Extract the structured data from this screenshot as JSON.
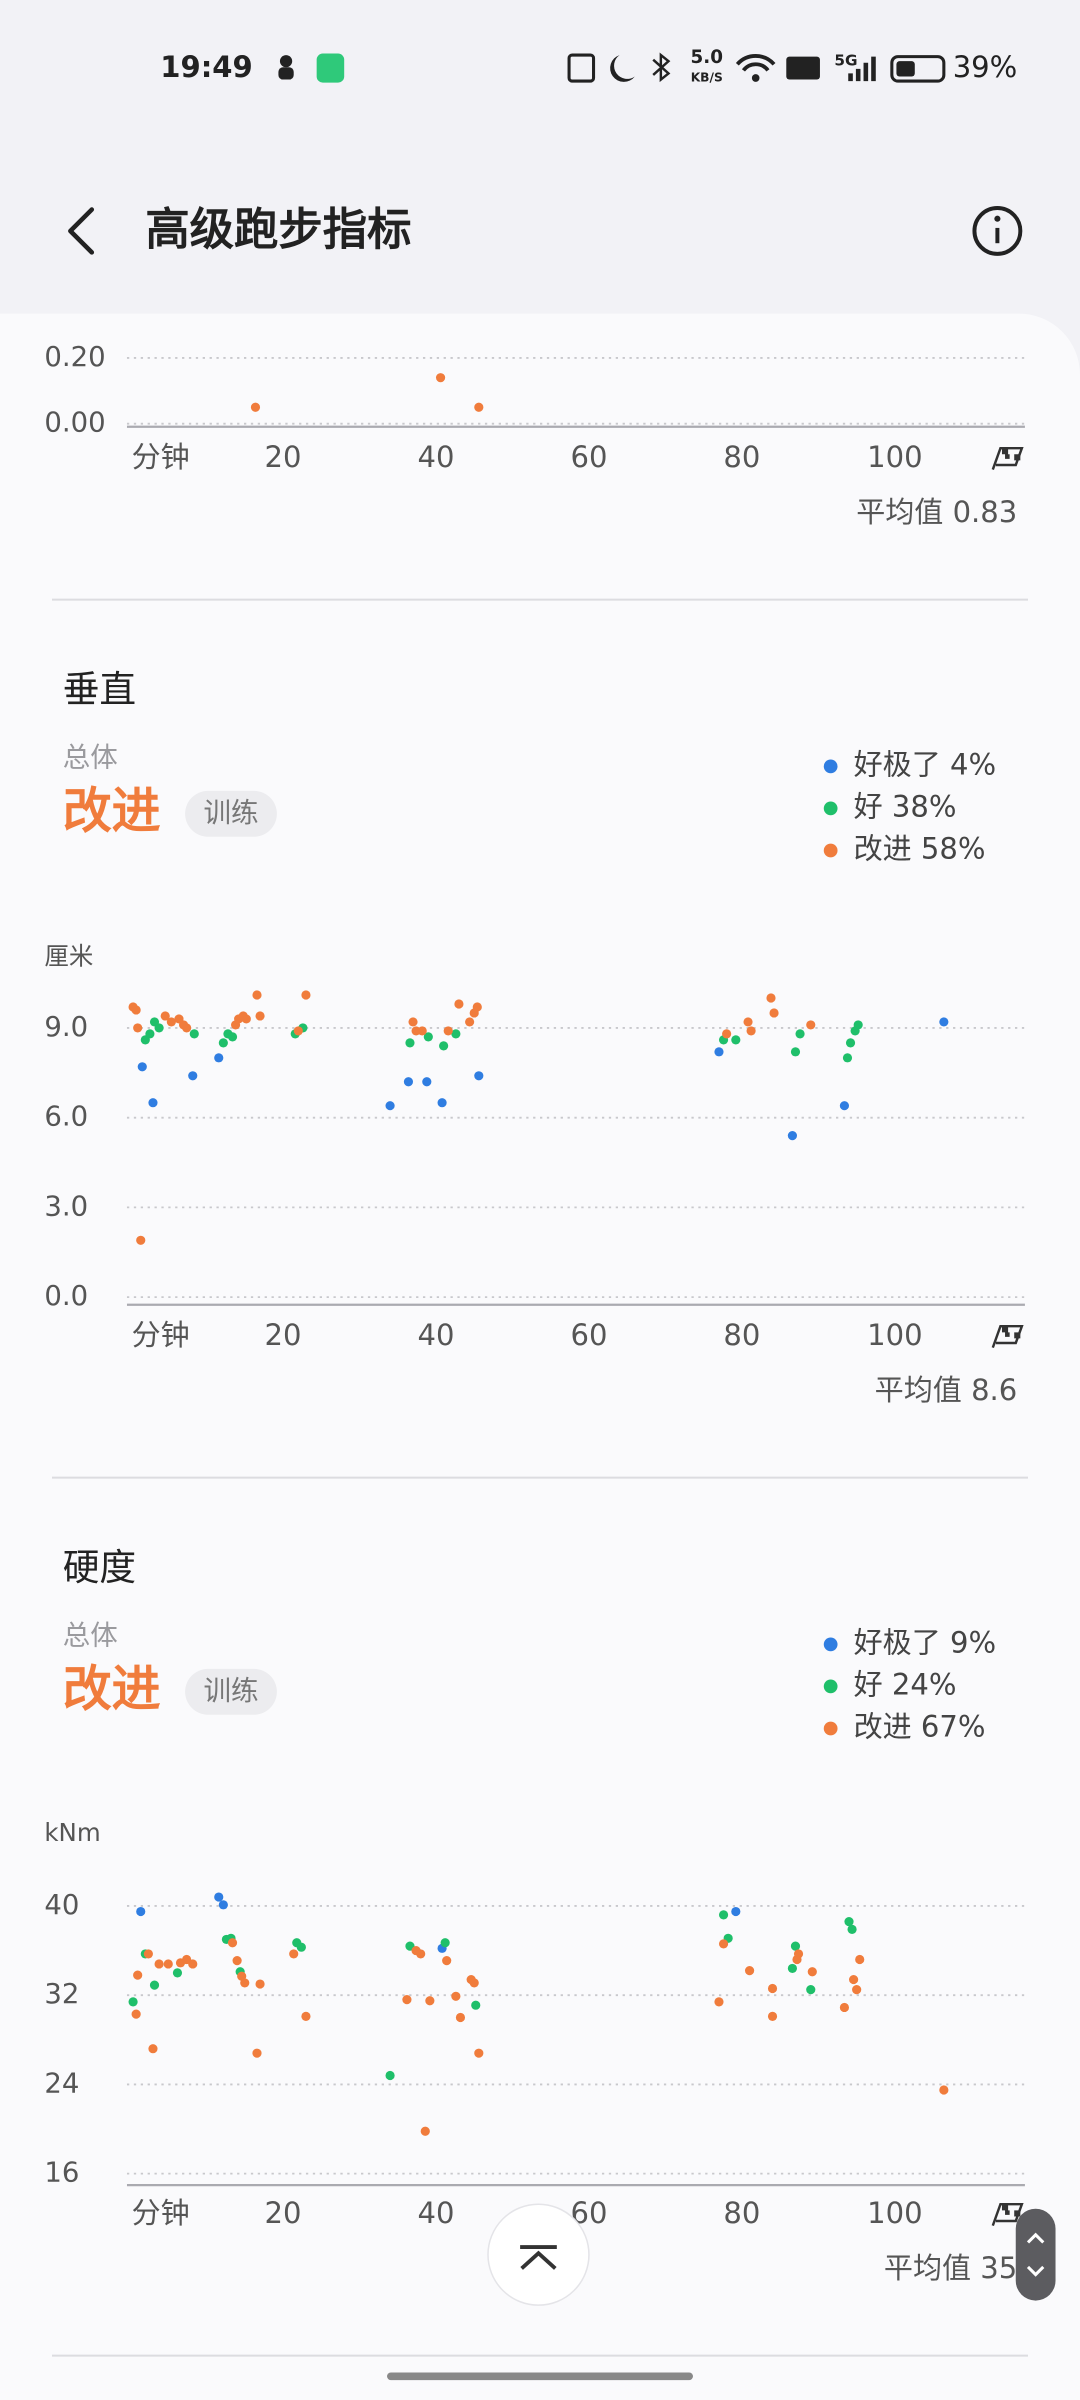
{
  "status_bar": {
    "time": "19:49",
    "network_speed": "5.0",
    "network_unit": "KB/S",
    "signal": "5G",
    "battery": "39%"
  },
  "header": {
    "title": "高级跑步指标"
  },
  "chart_data": [
    {
      "type": "scatter",
      "xlabel": "分钟",
      "color": "#f07c3c",
      "x": [
        16.4,
        40.6,
        45.6
      ],
      "values": [
        0.05,
        0.14,
        0.05
      ],
      "xlim": [
        0,
        117
      ],
      "xticks": [
        20,
        40,
        60,
        80,
        100
      ],
      "ylim": [
        0,
        0.2
      ],
      "yticks": [
        {
          "value": 0,
          "label": "0.00"
        },
        {
          "value": 0.2,
          "label": "0.20"
        }
      ],
      "grid": true,
      "average": "平均值 0.83"
    },
    {
      "type": "scatter",
      "title": "垂直",
      "overall_label": "总体",
      "rating": "改进",
      "rating_tag": "训练",
      "ylabel": "厘米",
      "xlabel": "分钟",
      "legend": "top-right",
      "series": [
        {
          "name": "好极了 4%",
          "color": "#2f7de1",
          "x": [
            1.6,
            3.0,
            8.2,
            11.6,
            34.0,
            36.4,
            38.8,
            40.8,
            45.6,
            77.0,
            86.6,
            93.4,
            106.4
          ],
          "values": [
            7.7,
            6.5,
            7.4,
            8.0,
            6.4,
            7.2,
            7.2,
            6.5,
            7.4,
            8.2,
            5.4,
            6.4,
            9.2
          ]
        },
        {
          "name": "好 38%",
          "color": "#1fbf6a",
          "x": [
            2.0,
            2.6,
            3.2,
            3.8,
            8.4,
            12.2,
            12.8,
            13.4,
            21.6,
            22.6,
            36.6,
            39.0,
            41.0,
            42.6,
            77.6,
            79.2,
            87.0,
            87.6,
            93.8,
            94.2,
            94.8,
            95.2
          ],
          "values": [
            8.6,
            8.8,
            9.2,
            9.0,
            8.8,
            8.5,
            8.8,
            8.7,
            8.8,
            9.0,
            8.5,
            8.7,
            8.4,
            8.8,
            8.6,
            8.6,
            8.2,
            8.8,
            8.0,
            8.5,
            8.9,
            9.1
          ]
        },
        {
          "name": "改进 58%",
          "color": "#f07c3c",
          "x": [
            0.4,
            0.8,
            1.0,
            1.4,
            4.6,
            5.4,
            6.4,
            7.0,
            7.4,
            13.8,
            14.2,
            14.8,
            15.2,
            16.6,
            17.0,
            22.0,
            23.0,
            37.0,
            37.4,
            38.2,
            41.6,
            43.0,
            44.4,
            45.0,
            45.4,
            78.0,
            80.8,
            81.2,
            83.8,
            84.2,
            89.0
          ],
          "values": [
            9.7,
            9.6,
            9.0,
            1.9,
            9.4,
            9.2,
            9.3,
            9.1,
            9.0,
            9.1,
            9.3,
            9.4,
            9.3,
            10.1,
            9.4,
            8.9,
            10.1,
            9.2,
            8.9,
            8.9,
            8.9,
            9.8,
            9.2,
            9.5,
            9.7,
            8.8,
            9.2,
            8.9,
            10.0,
            9.5,
            9.1
          ]
        }
      ],
      "xlim": [
        0,
        117
      ],
      "xticks": [
        20,
        40,
        60,
        80,
        100
      ],
      "ylim": [
        0,
        10.8
      ],
      "yticks": [
        {
          "value": 0,
          "label": "0.0"
        },
        {
          "value": 3,
          "label": "3.0"
        },
        {
          "value": 6,
          "label": "6.0"
        },
        {
          "value": 9,
          "label": "9.0"
        }
      ],
      "grid": true,
      "average": "平均值 8.6"
    },
    {
      "type": "scatter",
      "title": "硬度",
      "overall_label": "总体",
      "rating": "改进",
      "rating_tag": "训练",
      "ylabel": "kNm",
      "xlabel": "分钟",
      "legend": "top-right",
      "series": [
        {
          "name": "好极了 9%",
          "color": "#2f7de1",
          "x": [
            1.4,
            11.6,
            12.2,
            40.8,
            79.2
          ],
          "values": [
            39.5,
            40.8,
            40.1,
            36.2,
            39.5
          ]
        },
        {
          "name": "好 24%",
          "color": "#1fbf6a",
          "x": [
            0.4,
            2.0,
            3.2,
            6.2,
            12.6,
            13.2,
            14.4,
            21.8,
            22.4,
            34.0,
            36.6,
            41.2,
            45.2,
            77.6,
            78.2,
            86.6,
            87.0,
            89.0,
            94.0,
            94.4
          ],
          "values": [
            31.4,
            35.7,
            32.9,
            34.0,
            37.0,
            37.1,
            34.1,
            36.7,
            36.3,
            24.8,
            36.4,
            36.7,
            31.1,
            39.2,
            37.1,
            34.4,
            36.4,
            32.5,
            38.6,
            37.9
          ]
        },
        {
          "name": "改进 67%",
          "color": "#f07c3c",
          "x": [
            0.8,
            1.0,
            2.4,
            3.0,
            3.8,
            5.0,
            6.6,
            7.4,
            8.2,
            13.4,
            14.0,
            14.6,
            15.0,
            16.6,
            17.0,
            21.4,
            23.0,
            36.2,
            37.4,
            38.0,
            38.6,
            39.2,
            41.4,
            42.6,
            43.2,
            44.6,
            45.0,
            45.6,
            77.0,
            77.6,
            81.0,
            84.0,
            84.0,
            87.2,
            87.4,
            89.2,
            93.4,
            94.6,
            95.0,
            95.4,
            106.4
          ],
          "values": [
            30.3,
            33.8,
            35.7,
            27.2,
            34.8,
            34.8,
            34.9,
            35.2,
            34.8,
            36.7,
            35.1,
            33.7,
            33.1,
            26.8,
            33.0,
            35.7,
            30.1,
            31.6,
            36.0,
            35.7,
            19.8,
            31.5,
            35.1,
            31.9,
            30.0,
            33.4,
            33.1,
            26.8,
            31.4,
            36.6,
            34.2,
            32.6,
            30.1,
            35.2,
            35.7,
            34.1,
            30.9,
            33.4,
            32.5,
            35.2,
            23.5
          ]
        }
      ],
      "xlim": [
        0,
        117
      ],
      "xticks": [
        20,
        40,
        60,
        80,
        100
      ],
      "ylim": [
        15,
        43.5
      ],
      "yticks": [
        {
          "value": 16,
          "label": "16"
        },
        {
          "value": 24,
          "label": "24"
        },
        {
          "value": 32,
          "label": "32"
        },
        {
          "value": 40,
          "label": "40"
        }
      ],
      "grid": true,
      "average": "平均值 35"
    }
  ]
}
